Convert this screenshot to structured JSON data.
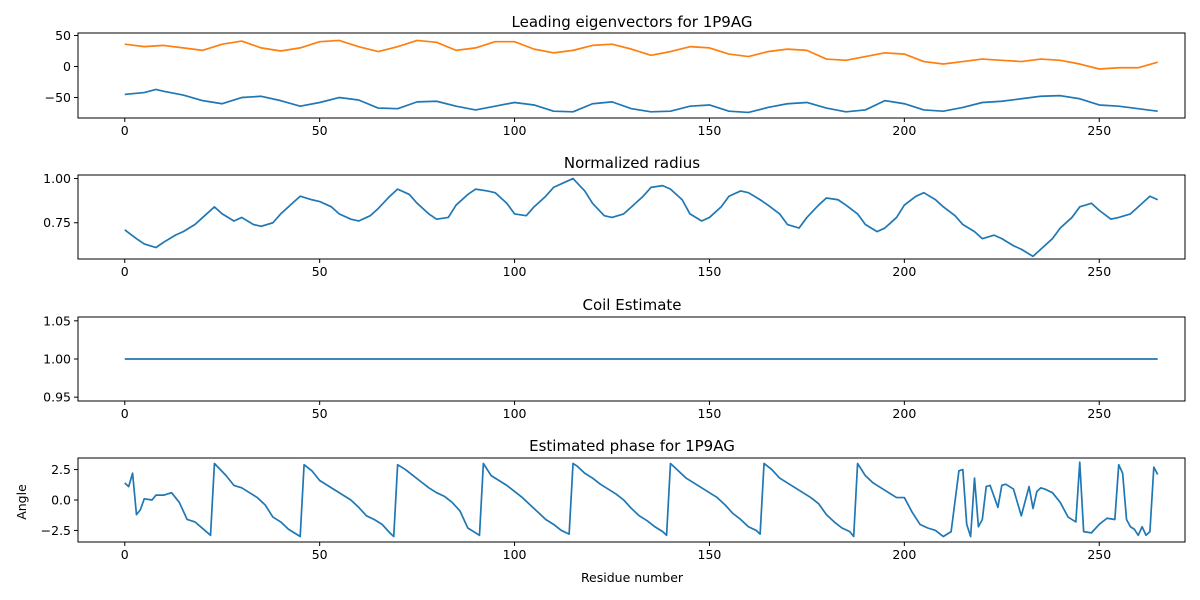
{
  "colors": {
    "series_1": "#1f77b4",
    "series_2": "#ff7f0e",
    "axes": "#000000"
  },
  "chart_data": [
    {
      "type": "line",
      "title": "Leading eigenvectors for 1P9AG",
      "xlabel": "",
      "ylabel": "",
      "xlim": [
        -12,
        272
      ],
      "ylim": [
        -83,
        54
      ],
      "xticks": [
        0,
        50,
        100,
        150,
        200,
        250
      ],
      "yticks": [
        50,
        0,
        -50
      ],
      "grid": false,
      "series": [
        {
          "color": "#1f77b4",
          "x": [
            0,
            5,
            8,
            10,
            15,
            20,
            25,
            30,
            35,
            40,
            45,
            50,
            55,
            60,
            65,
            70,
            75,
            80,
            85,
            90,
            95,
            100,
            105,
            110,
            115,
            120,
            125,
            130,
            135,
            140,
            145,
            150,
            155,
            160,
            165,
            170,
            175,
            180,
            185,
            190,
            195,
            200,
            205,
            210,
            215,
            220,
            225,
            230,
            235,
            240,
            245,
            250,
            255,
            260,
            265
          ],
          "y": [
            -45,
            -42,
            -37,
            -40,
            -46,
            -55,
            -60,
            -50,
            -48,
            -55,
            -64,
            -58,
            -50,
            -54,
            -67,
            -68,
            -57,
            -56,
            -64,
            -70,
            -64,
            -58,
            -62,
            -72,
            -73,
            -60,
            -57,
            -68,
            -73,
            -72,
            -64,
            -62,
            -72,
            -74,
            -66,
            -60,
            -58,
            -67,
            -73,
            -70,
            -55,
            -60,
            -70,
            -72,
            -66,
            -58,
            -56,
            -52,
            -48,
            -47,
            -52,
            -62,
            -64,
            -68,
            -72
          ]
        },
        {
          "color": "#ff7f0e",
          "x": [
            0,
            5,
            10,
            15,
            20,
            25,
            30,
            35,
            40,
            45,
            50,
            55,
            60,
            65,
            70,
            75,
            80,
            85,
            90,
            95,
            100,
            105,
            110,
            115,
            120,
            125,
            130,
            135,
            140,
            145,
            150,
            155,
            160,
            165,
            170,
            175,
            180,
            185,
            190,
            195,
            200,
            205,
            210,
            215,
            220,
            225,
            230,
            235,
            240,
            245,
            250,
            255,
            260,
            265
          ],
          "y": [
            36,
            32,
            34,
            30,
            26,
            36,
            41,
            30,
            25,
            30,
            40,
            42,
            32,
            24,
            32,
            42,
            39,
            26,
            30,
            40,
            40,
            28,
            22,
            26,
            34,
            36,
            28,
            18,
            24,
            32,
            30,
            20,
            16,
            24,
            28,
            26,
            12,
            10,
            16,
            22,
            20,
            8,
            4,
            8,
            12,
            10,
            8,
            12,
            10,
            4,
            -4,
            -2,
            -2,
            7
          ]
        }
      ]
    },
    {
      "type": "line",
      "title": "Normalized radius",
      "xlabel": "",
      "ylabel": "",
      "xlim": [
        -12,
        272
      ],
      "ylim": [
        0.545,
        1.02
      ],
      "xticks": [
        0,
        50,
        100,
        150,
        200,
        250
      ],
      "yticks": [
        1.0,
        0.75
      ],
      "grid": false,
      "series": [
        {
          "color": "#1f77b4",
          "x": [
            0,
            3,
            5,
            8,
            10,
            13,
            15,
            18,
            20,
            23,
            25,
            28,
            30,
            33,
            35,
            38,
            40,
            43,
            45,
            48,
            50,
            53,
            55,
            58,
            60,
            63,
            65,
            68,
            70,
            73,
            75,
            78,
            80,
            83,
            85,
            88,
            90,
            93,
            95,
            98,
            100,
            103,
            105,
            108,
            110,
            113,
            115,
            118,
            120,
            123,
            125,
            128,
            130,
            133,
            135,
            138,
            140,
            143,
            145,
            148,
            150,
            153,
            155,
            158,
            160,
            163,
            165,
            168,
            170,
            173,
            175,
            178,
            180,
            183,
            185,
            188,
            190,
            193,
            195,
            198,
            200,
            203,
            205,
            208,
            210,
            213,
            215,
            218,
            220,
            223,
            225,
            228,
            230,
            233,
            235,
            238,
            240,
            243,
            245,
            248,
            250,
            253,
            255,
            258,
            260,
            263,
            265
          ],
          "y": [
            0.71,
            0.66,
            0.63,
            0.61,
            0.64,
            0.68,
            0.7,
            0.74,
            0.78,
            0.84,
            0.8,
            0.76,
            0.78,
            0.74,
            0.73,
            0.75,
            0.8,
            0.86,
            0.9,
            0.88,
            0.87,
            0.84,
            0.8,
            0.77,
            0.76,
            0.79,
            0.83,
            0.9,
            0.94,
            0.91,
            0.86,
            0.8,
            0.77,
            0.78,
            0.85,
            0.91,
            0.94,
            0.93,
            0.92,
            0.86,
            0.8,
            0.79,
            0.84,
            0.9,
            0.95,
            0.98,
            1.0,
            0.93,
            0.86,
            0.79,
            0.78,
            0.8,
            0.84,
            0.9,
            0.95,
            0.96,
            0.94,
            0.88,
            0.8,
            0.76,
            0.78,
            0.84,
            0.9,
            0.93,
            0.92,
            0.88,
            0.85,
            0.8,
            0.74,
            0.72,
            0.78,
            0.85,
            0.89,
            0.88,
            0.85,
            0.8,
            0.74,
            0.7,
            0.72,
            0.78,
            0.85,
            0.9,
            0.92,
            0.88,
            0.84,
            0.79,
            0.74,
            0.7,
            0.66,
            0.68,
            0.66,
            0.62,
            0.6,
            0.56,
            0.6,
            0.66,
            0.72,
            0.78,
            0.84,
            0.86,
            0.82,
            0.77,
            0.78,
            0.8,
            0.84,
            0.9,
            0.88
          ]
        }
      ]
    },
    {
      "type": "line",
      "title": "Coil Estimate",
      "xlabel": "",
      "ylabel": "",
      "xlim": [
        -12,
        272
      ],
      "ylim": [
        0.945,
        1.055
      ],
      "xticks": [
        0,
        50,
        100,
        150,
        200,
        250
      ],
      "yticks": [
        1.05,
        1.0,
        0.95
      ],
      "grid": false,
      "series": [
        {
          "color": "#1f77b4",
          "x": [
            0,
            265
          ],
          "y": [
            1.0,
            1.0
          ]
        }
      ]
    },
    {
      "type": "line",
      "title": "Estimated phase for 1P9AG",
      "xlabel": "Residue number",
      "ylabel": "Angle",
      "xlim": [
        -12,
        272
      ],
      "ylim": [
        -3.45,
        3.45
      ],
      "xticks": [
        0,
        50,
        100,
        150,
        200,
        250
      ],
      "yticks": [
        2.5,
        0.0,
        -2.5
      ],
      "grid": false,
      "series": [
        {
          "color": "#1f77b4",
          "x": [
            0,
            1,
            2,
            3,
            4,
            5,
            7,
            8,
            10,
            12,
            14,
            16,
            18,
            22,
            23,
            26,
            28,
            30,
            32,
            34,
            36,
            38,
            40,
            42,
            45,
            46,
            48,
            50,
            52,
            54,
            56,
            58,
            60,
            62,
            64,
            66,
            68,
            69,
            70,
            72,
            74,
            76,
            78,
            80,
            82,
            84,
            86,
            88,
            91,
            92,
            94,
            96,
            98,
            100,
            102,
            104,
            106,
            108,
            110,
            112,
            114,
            115,
            116,
            118,
            120,
            122,
            124,
            126,
            128,
            130,
            132,
            134,
            136,
            138,
            139,
            140,
            142,
            144,
            146,
            148,
            150,
            152,
            154,
            156,
            158,
            160,
            162,
            163,
            164,
            166,
            168,
            170,
            172,
            174,
            176,
            178,
            180,
            182,
            184,
            186,
            187,
            188,
            190,
            192,
            194,
            196,
            198,
            200,
            202,
            204,
            206,
            208,
            210,
            212,
            214,
            215,
            216,
            217,
            218,
            219,
            220,
            221,
            222,
            224,
            225,
            226,
            228,
            230,
            232,
            233,
            234,
            235,
            236,
            238,
            240,
            242,
            244,
            245,
            246,
            248,
            250,
            252,
            254,
            255,
            256,
            257,
            258,
            259,
            260,
            261,
            262,
            263,
            264,
            265
          ],
          "y": [
            1.4,
            1.1,
            2.2,
            -1.2,
            -0.8,
            0.1,
            0.0,
            0.4,
            0.4,
            0.6,
            -0.2,
            -1.6,
            -1.8,
            -2.9,
            3.0,
            2.0,
            1.2,
            1.0,
            0.6,
            0.2,
            -0.4,
            -1.4,
            -1.8,
            -2.4,
            -3.0,
            2.9,
            2.4,
            1.6,
            1.2,
            0.8,
            0.4,
            0.0,
            -0.6,
            -1.3,
            -1.6,
            -2.0,
            -2.7,
            -3.0,
            2.9,
            2.5,
            2.0,
            1.5,
            1.0,
            0.6,
            0.3,
            -0.2,
            -0.9,
            -2.3,
            -2.9,
            3.0,
            2.0,
            1.6,
            1.2,
            0.7,
            0.2,
            -0.4,
            -1.0,
            -1.6,
            -2.0,
            -2.5,
            -2.8,
            3.0,
            2.8,
            2.2,
            1.8,
            1.3,
            0.9,
            0.5,
            0.0,
            -0.7,
            -1.3,
            -1.7,
            -2.2,
            -2.6,
            -2.9,
            3.0,
            2.4,
            1.8,
            1.4,
            1.0,
            0.6,
            0.2,
            -0.4,
            -1.1,
            -1.6,
            -2.2,
            -2.5,
            -2.8,
            3.0,
            2.5,
            1.8,
            1.4,
            1.0,
            0.6,
            0.2,
            -0.3,
            -1.2,
            -1.8,
            -2.3,
            -2.6,
            -3.0,
            3.0,
            2.0,
            1.4,
            1.0,
            0.6,
            0.2,
            0.2,
            -1.0,
            -2.0,
            -2.3,
            -2.5,
            -3.0,
            -2.6,
            2.4,
            2.5,
            -2.0,
            -3.0,
            1.8,
            -2.2,
            -1.6,
            1.1,
            1.2,
            -0.6,
            1.2,
            1.3,
            0.9,
            -1.3,
            1.1,
            -0.7,
            0.7,
            1.0,
            0.9,
            0.6,
            -0.2,
            -1.4,
            -1.8,
            3.1,
            -2.6,
            -2.7,
            -2.0,
            -1.5,
            -1.6,
            2.9,
            2.2,
            -1.6,
            -2.2,
            -2.4,
            -2.9,
            -2.2,
            -2.9,
            -2.6,
            2.7,
            2.1
          ]
        }
      ]
    }
  ]
}
